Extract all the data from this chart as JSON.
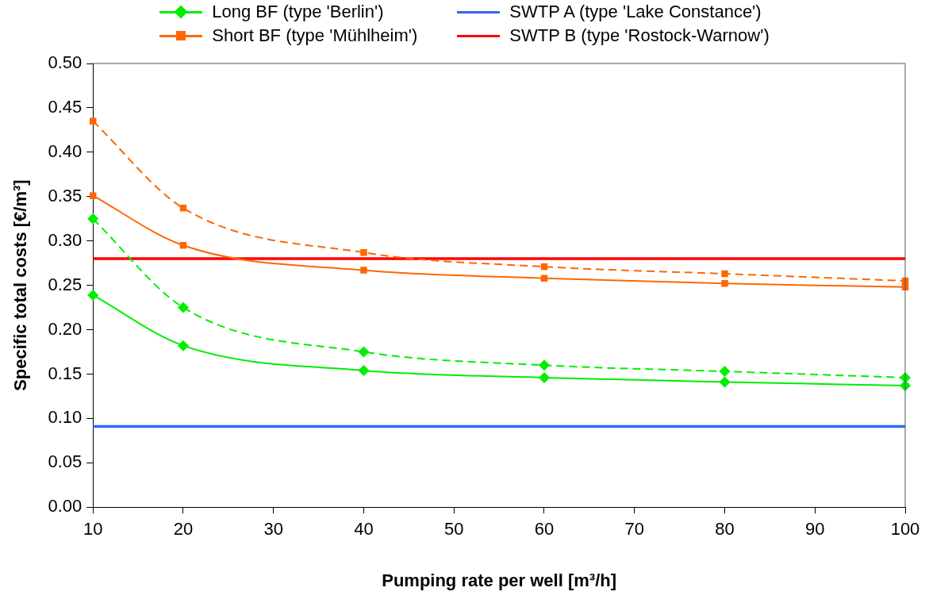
{
  "chart_data": {
    "type": "line",
    "xlabel": "Pumping rate per well [m³/h]",
    "ylabel": "Specific total costs [€/m³]",
    "xlim": [
      10,
      100
    ],
    "xticks": [
      10,
      20,
      30,
      40,
      50,
      60,
      70,
      80,
      90,
      100
    ],
    "ylim": [
      0,
      0.5
    ],
    "yticks": [
      {
        "value": 0,
        "label": "0.00"
      },
      {
        "value": 0.05,
        "label": "0.05"
      },
      {
        "value": 0.1,
        "label": "0.10"
      },
      {
        "value": 0.15,
        "label": "0.15"
      },
      {
        "value": 0.2,
        "label": "0.20"
      },
      {
        "value": 0.25,
        "label": "0.25"
      },
      {
        "value": 0.3,
        "label": "0.30"
      },
      {
        "value": 0.35,
        "label": "0.35"
      },
      {
        "value": 0.4,
        "label": "0.40"
      },
      {
        "value": 0.45,
        "label": "0.45"
      },
      {
        "value": 0.5,
        "label": "0.50"
      }
    ],
    "grid": false,
    "legend": "top",
    "series": [
      {
        "name": "Long BF (type 'Berlin')",
        "color": "#00ee00",
        "x": [
          10,
          20,
          40,
          60,
          80,
          100
        ],
        "values": [
          0.239,
          0.182,
          0.154,
          0.146,
          0.141,
          0.137
        ],
        "marker": "diamond",
        "line_style": "solid"
      },
      {
        "color": "#00ee00",
        "x": [
          10,
          20,
          40,
          60,
          80,
          100
        ],
        "values": [
          0.325,
          0.225,
          0.175,
          0.16,
          0.153,
          0.146
        ],
        "marker": "diamond",
        "line_style": "dashed"
      },
      {
        "name": "Short BF (type 'Mühlheim')",
        "color": "#ff6600",
        "x": [
          10,
          20,
          40,
          60,
          80,
          100
        ],
        "values": [
          0.351,
          0.295,
          0.267,
          0.258,
          0.252,
          0.248
        ],
        "marker": "square",
        "line_style": "solid"
      },
      {
        "color": "#ff6600",
        "x": [
          10,
          20,
          40,
          60,
          80,
          100
        ],
        "values": [
          0.435,
          0.337,
          0.287,
          0.271,
          0.263,
          0.255
        ],
        "marker": "square",
        "line_style": "dashed"
      },
      {
        "name": "SWTP A (type 'Lake Constance')",
        "color": "#3366ff",
        "x": [
          10,
          100
        ],
        "values": [
          0.091,
          0.091
        ],
        "marker": "none",
        "line_style": "solid"
      },
      {
        "name": "SWTP B (type 'Rostock-Warnow')",
        "color": "#ff0000",
        "x": [
          10,
          100
        ],
        "values": [
          0.28,
          0.28
        ],
        "marker": "none",
        "line_style": "solid"
      }
    ]
  }
}
